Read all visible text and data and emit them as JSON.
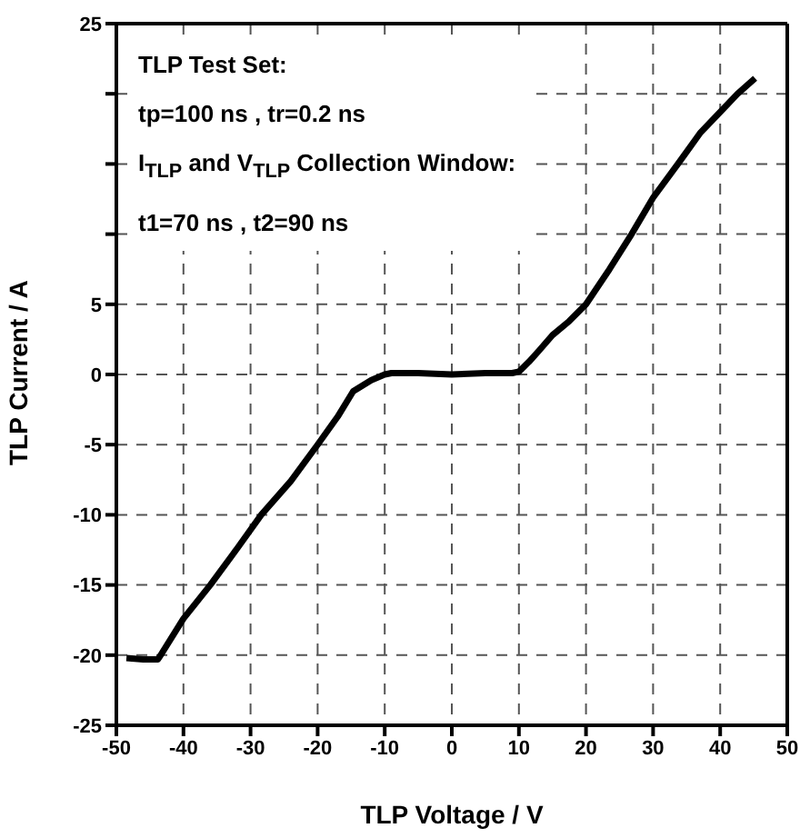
{
  "chart_data": {
    "type": "line",
    "xlabel": "TLP Voltage / V",
    "ylabel": "TLP Current / A",
    "annotations": [
      "TLP Test Set:",
      "tp=100 ns , tr=0.2 ns",
      "I$_{TLP}$ and V$_{TLP}$ Collection Window:",
      "t1=70 ns , t2=90 ns"
    ],
    "series": [
      {
        "color": "#000000",
        "x": [
          -48.5,
          -46,
          -43.8,
          -43.4,
          -40,
          -36,
          -32,
          -28.4,
          -24,
          -20,
          -17,
          -14.7,
          -12,
          -10,
          -9,
          -5,
          0,
          5,
          9,
          10,
          11.5,
          13,
          15,
          17.5,
          20,
          23.5,
          26.8,
          30,
          33.7,
          37,
          40,
          42.6,
          45.2
        ],
        "values": [
          -20.2,
          -20.3,
          -20.3,
          -20,
          -17.4,
          -15,
          -12.4,
          -10,
          -7.6,
          -5,
          -3,
          -1.2,
          -0.4,
          0,
          0.1,
          0.1,
          0,
          0.1,
          0.1,
          0.2,
          0.9,
          1.7,
          2.8,
          3.8,
          5,
          7.5,
          10,
          12.6,
          15,
          17.2,
          18.7,
          20,
          21.1
        ]
      }
    ],
    "xlim": [
      -50,
      50
    ],
    "xticks": [
      -50,
      -40,
      -30,
      -20,
      -10,
      0,
      10,
      20,
      30,
      40,
      50
    ],
    "ylim": [
      -25,
      25
    ],
    "yticks": [
      -25,
      -20,
      -15,
      -10,
      -5,
      0,
      5,
      {
        "value": 10,
        "label": null
      },
      {
        "value": 15,
        "label": null
      },
      {
        "value": 20,
        "label": null
      },
      25
    ],
    "grid": true,
    "line_style": "solid",
    "marker": "none",
    "legend": false
  }
}
